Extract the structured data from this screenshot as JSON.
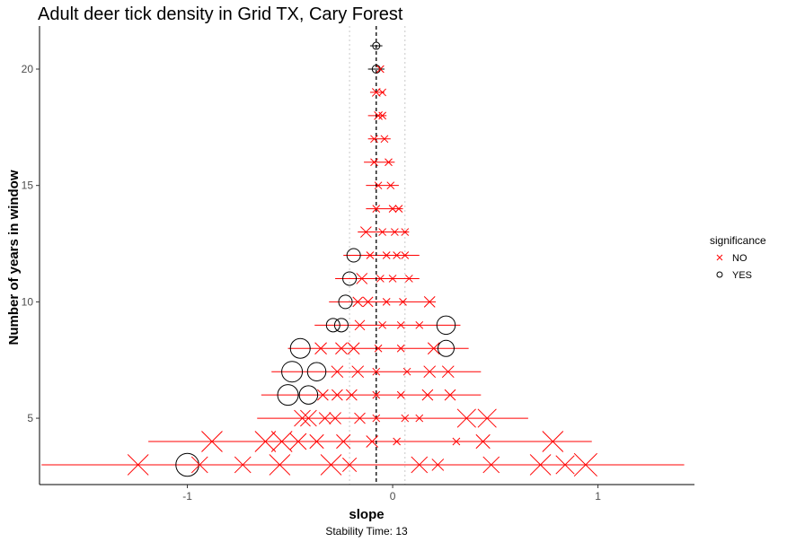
{
  "chart_data": {
    "type": "scatter",
    "title": "Adult deer tick density in Grid TX, Cary Forest",
    "xlabel": "slope",
    "ylabel": "Number of years in window",
    "caption": "Stability Time: 13",
    "xlim": [
      -1.72,
      1.47
    ],
    "ylim": [
      2.15,
      21.85
    ],
    "x_ticks": [
      -1,
      0,
      1
    ],
    "x_tick_labels": [
      "-1",
      "0",
      "1"
    ],
    "y_ticks": [
      5,
      10,
      15,
      20
    ],
    "y_tick_labels": [
      "5",
      "10",
      "15",
      "20"
    ],
    "grid": false,
    "reference_lines": {
      "dashed": -0.08,
      "dotted": [
        -0.21,
        0.06
      ]
    },
    "legend": {
      "title": "significance",
      "placement": "right",
      "entries": [
        "NO",
        "YES"
      ]
    },
    "colors": {
      "NO": "#ff0000",
      "YES": "#000000"
    },
    "range_lines": [
      {
        "y": 21,
        "xmin": -0.11,
        "xmax": -0.05,
        "sig": "YES"
      },
      {
        "y": 20,
        "xmin": -0.12,
        "xmax": -0.04,
        "sig": "YES"
      },
      {
        "y": 19,
        "xmin": -0.11,
        "xmax": -0.04,
        "sig": "NO"
      },
      {
        "y": 18,
        "xmin": -0.12,
        "xmax": -0.03,
        "sig": "NO"
      },
      {
        "y": 17,
        "xmin": -0.12,
        "xmax": -0.01,
        "sig": "NO"
      },
      {
        "y": 16,
        "xmin": -0.14,
        "xmax": 0.01,
        "sig": "NO"
      },
      {
        "y": 15,
        "xmin": -0.13,
        "xmax": 0.03,
        "sig": "NO"
      },
      {
        "y": 14,
        "xmin": -0.13,
        "xmax": 0.05,
        "sig": "NO"
      },
      {
        "y": 13,
        "xmin": -0.17,
        "xmax": 0.08,
        "sig": "NO"
      },
      {
        "y": 12,
        "xmin": -0.24,
        "xmax": 0.13,
        "sig": "NO"
      },
      {
        "y": 11,
        "xmin": -0.28,
        "xmax": 0.13,
        "sig": "NO"
      },
      {
        "y": 10,
        "xmin": -0.31,
        "xmax": 0.21,
        "sig": "NO"
      },
      {
        "y": 9,
        "xmin": -0.38,
        "xmax": 0.33,
        "sig": "NO"
      },
      {
        "y": 8,
        "xmin": -0.51,
        "xmax": 0.37,
        "sig": "NO"
      },
      {
        "y": 7,
        "xmin": -0.59,
        "xmax": 0.43,
        "sig": "NO"
      },
      {
        "y": 6,
        "xmin": -0.64,
        "xmax": 0.43,
        "sig": "NO"
      },
      {
        "y": 5,
        "xmin": -0.66,
        "xmax": 0.66,
        "sig": "NO"
      },
      {
        "y": 4,
        "xmin": -1.19,
        "xmax": 0.97,
        "sig": "NO"
      },
      {
        "y": 3,
        "xmin": -1.71,
        "xmax": 1.42,
        "sig": "NO"
      }
    ],
    "points": [
      {
        "y": 21,
        "x": -0.08,
        "sig": "YES",
        "size": 1.0
      },
      {
        "y": 20,
        "x": -0.08,
        "sig": "YES",
        "size": 1.2
      },
      {
        "y": 20,
        "x": -0.06,
        "sig": "NO",
        "size": 1.0
      },
      {
        "y": 19,
        "x": -0.08,
        "sig": "NO",
        "size": 1.2
      },
      {
        "y": 19,
        "x": -0.05,
        "sig": "NO",
        "size": 1.0
      },
      {
        "y": 18,
        "x": -0.07,
        "sig": "NO",
        "size": 1.2
      },
      {
        "y": 18,
        "x": -0.05,
        "sig": "NO",
        "size": 1.0
      },
      {
        "y": 17,
        "x": -0.09,
        "sig": "NO",
        "size": 1.0
      },
      {
        "y": 17,
        "x": -0.04,
        "sig": "NO",
        "size": 1.0
      },
      {
        "y": 16,
        "x": -0.09,
        "sig": "NO",
        "size": 1.0
      },
      {
        "y": 16,
        "x": -0.02,
        "sig": "NO",
        "size": 1.0
      },
      {
        "y": 15,
        "x": -0.07,
        "sig": "NO",
        "size": 1.0
      },
      {
        "y": 15,
        "x": -0.01,
        "sig": "NO",
        "size": 1.0
      },
      {
        "y": 14,
        "x": -0.08,
        "sig": "NO",
        "size": 1.0
      },
      {
        "y": 14,
        "x": 0.0,
        "sig": "NO",
        "size": 1.0
      },
      {
        "y": 14,
        "x": 0.03,
        "sig": "NO",
        "size": 1.0
      },
      {
        "y": 13,
        "x": -0.13,
        "sig": "NO",
        "size": 1.8
      },
      {
        "y": 13,
        "x": -0.05,
        "sig": "NO",
        "size": 1.0
      },
      {
        "y": 13,
        "x": 0.01,
        "sig": "NO",
        "size": 1.0
      },
      {
        "y": 13,
        "x": 0.06,
        "sig": "NO",
        "size": 1.0
      },
      {
        "y": 12,
        "x": -0.19,
        "sig": "YES",
        "size": 2.4
      },
      {
        "y": 12,
        "x": -0.11,
        "sig": "NO",
        "size": 1.0
      },
      {
        "y": 12,
        "x": -0.03,
        "sig": "NO",
        "size": 1.0
      },
      {
        "y": 12,
        "x": 0.02,
        "sig": "NO",
        "size": 1.0
      },
      {
        "y": 12,
        "x": 0.06,
        "sig": "NO",
        "size": 1.0
      },
      {
        "y": 11,
        "x": -0.21,
        "sig": "YES",
        "size": 2.4
      },
      {
        "y": 11,
        "x": -0.15,
        "sig": "NO",
        "size": 1.8
      },
      {
        "y": 11,
        "x": -0.06,
        "sig": "NO",
        "size": 1.0
      },
      {
        "y": 11,
        "x": 0.0,
        "sig": "NO",
        "size": 1.0
      },
      {
        "y": 11,
        "x": 0.08,
        "sig": "NO",
        "size": 1.0
      },
      {
        "y": 10,
        "x": -0.23,
        "sig": "YES",
        "size": 2.4
      },
      {
        "y": 10,
        "x": -0.17,
        "sig": "NO",
        "size": 1.6
      },
      {
        "y": 10,
        "x": -0.12,
        "sig": "NO",
        "size": 1.6
      },
      {
        "y": 10,
        "x": -0.03,
        "sig": "NO",
        "size": 1.0
      },
      {
        "y": 10,
        "x": 0.05,
        "sig": "NO",
        "size": 1.0
      },
      {
        "y": 10,
        "x": 0.18,
        "sig": "NO",
        "size": 1.8
      },
      {
        "y": 9,
        "x": -0.29,
        "sig": "YES",
        "size": 2.4
      },
      {
        "y": 9,
        "x": -0.25,
        "sig": "YES",
        "size": 2.4
      },
      {
        "y": 9,
        "x": -0.16,
        "sig": "NO",
        "size": 1.6
      },
      {
        "y": 9,
        "x": -0.05,
        "sig": "NO",
        "size": 1.0
      },
      {
        "y": 9,
        "x": 0.04,
        "sig": "NO",
        "size": 1.0
      },
      {
        "y": 9,
        "x": 0.13,
        "sig": "NO",
        "size": 1.0
      },
      {
        "y": 9,
        "x": 0.26,
        "sig": "YES",
        "size": 3.5
      },
      {
        "y": 8,
        "x": -0.45,
        "sig": "YES",
        "size": 3.8
      },
      {
        "y": 8,
        "x": -0.35,
        "sig": "NO",
        "size": 2.0
      },
      {
        "y": 8,
        "x": -0.25,
        "sig": "NO",
        "size": 2.0
      },
      {
        "y": 8,
        "x": -0.19,
        "sig": "NO",
        "size": 2.0
      },
      {
        "y": 8,
        "x": -0.07,
        "sig": "NO",
        "size": 1.0
      },
      {
        "y": 8,
        "x": 0.04,
        "sig": "NO",
        "size": 1.0
      },
      {
        "y": 8,
        "x": 0.2,
        "sig": "NO",
        "size": 2.0
      },
      {
        "y": 8,
        "x": 0.26,
        "sig": "YES",
        "size": 3.0
      },
      {
        "y": 7,
        "x": -0.49,
        "sig": "YES",
        "size": 4.0
      },
      {
        "y": 7,
        "x": -0.37,
        "sig": "YES",
        "size": 3.5
      },
      {
        "y": 7,
        "x": -0.27,
        "sig": "NO",
        "size": 2.0
      },
      {
        "y": 7,
        "x": -0.17,
        "sig": "NO",
        "size": 2.0
      },
      {
        "y": 7,
        "x": -0.08,
        "sig": "NO",
        "size": 1.0
      },
      {
        "y": 7,
        "x": 0.07,
        "sig": "NO",
        "size": 1.0
      },
      {
        "y": 7,
        "x": 0.18,
        "sig": "NO",
        "size": 2.0
      },
      {
        "y": 7,
        "x": 0.27,
        "sig": "NO",
        "size": 2.0
      },
      {
        "y": 6,
        "x": -0.51,
        "sig": "YES",
        "size": 4.0
      },
      {
        "y": 6,
        "x": -0.41,
        "sig": "YES",
        "size": 3.5
      },
      {
        "y": 6,
        "x": -0.34,
        "sig": "NO",
        "size": 1.8
      },
      {
        "y": 6,
        "x": -0.27,
        "sig": "NO",
        "size": 1.8
      },
      {
        "y": 6,
        "x": -0.2,
        "sig": "NO",
        "size": 1.8
      },
      {
        "y": 6,
        "x": -0.08,
        "sig": "NO",
        "size": 1.0
      },
      {
        "y": 6,
        "x": 0.04,
        "sig": "NO",
        "size": 1.0
      },
      {
        "y": 6,
        "x": 0.17,
        "sig": "NO",
        "size": 1.8
      },
      {
        "y": 6,
        "x": 0.28,
        "sig": "NO",
        "size": 1.8
      },
      {
        "y": 5,
        "x": -0.44,
        "sig": "NO",
        "size": 3.0
      },
      {
        "y": 5,
        "x": -0.41,
        "sig": "NO",
        "size": 3.0
      },
      {
        "y": 5,
        "x": -0.33,
        "sig": "NO",
        "size": 2.0
      },
      {
        "y": 5,
        "x": -0.28,
        "sig": "NO",
        "size": 2.0
      },
      {
        "y": 5,
        "x": -0.16,
        "sig": "NO",
        "size": 1.8
      },
      {
        "y": 5,
        "x": -0.08,
        "sig": "NO",
        "size": 1.0
      },
      {
        "y": 5,
        "x": 0.06,
        "sig": "NO",
        "size": 1.0
      },
      {
        "y": 5,
        "x": 0.13,
        "sig": "NO",
        "size": 1.0
      },
      {
        "y": 5,
        "x": 0.36,
        "sig": "NO",
        "size": 3.5
      },
      {
        "y": 5,
        "x": 0.46,
        "sig": "NO",
        "size": 3.5
      },
      {
        "y": 4,
        "x": -0.88,
        "sig": "NO",
        "size": 4.0
      },
      {
        "y": 4,
        "x": -0.62,
        "sig": "NO",
        "size": 4.0
      },
      {
        "y": 4,
        "x": -0.54,
        "sig": "NO",
        "size": 4.0
      },
      {
        "y": 4,
        "x": -0.46,
        "sig": "NO",
        "size": 3.0
      },
      {
        "y": 4,
        "x": -0.37,
        "sig": "NO",
        "size": 2.5
      },
      {
        "y": 4,
        "x": -0.24,
        "sig": "NO",
        "size": 2.5
      },
      {
        "y": 4,
        "x": -0.1,
        "sig": "NO",
        "size": 2.0
      },
      {
        "y": 4,
        "x": 0.02,
        "sig": "NO",
        "size": 1.0
      },
      {
        "y": 4,
        "x": 0.31,
        "sig": "NO",
        "size": 1.0
      },
      {
        "y": 4,
        "x": 0.44,
        "sig": "NO",
        "size": 2.5
      },
      {
        "y": 4,
        "x": 0.78,
        "sig": "NO",
        "size": 4.0
      },
      {
        "y": 3,
        "x": -1.24,
        "sig": "NO",
        "size": 4.0
      },
      {
        "y": 3,
        "x": -1.0,
        "sig": "YES",
        "size": 4.5
      },
      {
        "y": 3,
        "x": -0.94,
        "sig": "NO",
        "size": 3.0
      },
      {
        "y": 3,
        "x": -0.73,
        "sig": "NO",
        "size": 3.0
      },
      {
        "y": 3,
        "x": -0.55,
        "sig": "NO",
        "size": 4.0
      },
      {
        "y": 3,
        "x": -0.3,
        "sig": "NO",
        "size": 4.0
      },
      {
        "y": 3,
        "x": -0.21,
        "sig": "NO",
        "size": 2.5
      },
      {
        "y": 3,
        "x": 0.13,
        "sig": "NO",
        "size": 3.0
      },
      {
        "y": 3,
        "x": 0.22,
        "sig": "NO",
        "size": 2.0
      },
      {
        "y": 3,
        "x": 0.48,
        "sig": "NO",
        "size": 3.0
      },
      {
        "y": 3,
        "x": 0.72,
        "sig": "NO",
        "size": 4.0
      },
      {
        "y": 3,
        "x": 0.84,
        "sig": "NO",
        "size": 3.5
      },
      {
        "y": 3,
        "x": 0.94,
        "sig": "NO",
        "size": 4.5
      }
    ]
  }
}
